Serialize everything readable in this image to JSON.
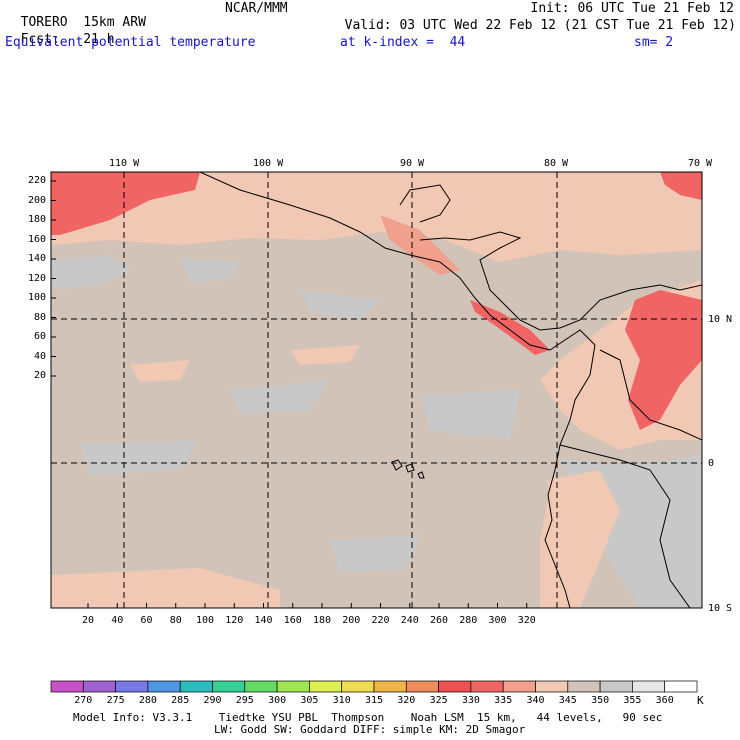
{
  "header": {
    "model_name": "TORERO",
    "resolution": "15km ARW",
    "center": "NCAR/MMM",
    "init": "Init: 06 UTC Tue 21 Feb 12",
    "fcst_label": "Fcst:",
    "fcst_hours": "21 h",
    "valid": "Valid: 03 UTC Wed 22 Feb 12 (21 CST Tue 21 Feb 12)",
    "field": "Equivalent potential temperature",
    "level": "at k-index =  44",
    "smoothing": "sm= 2"
  },
  "map": {
    "lon_labels": [
      "110 W",
      "100 W",
      "90 W",
      "80 W",
      "70 W"
    ],
    "lat_labels": [
      "10 N",
      "0",
      "10 S"
    ],
    "y_ticks": [
      "220",
      "200",
      "180",
      "160",
      "140",
      "120",
      "100",
      "80",
      "60",
      "40",
      "20"
    ],
    "x_ticks": [
      "20",
      "40",
      "60",
      "80",
      "100",
      "120",
      "140",
      "160",
      "180",
      "200",
      "220",
      "240",
      "260",
      "280",
      "300",
      "320"
    ]
  },
  "colorbar": {
    "unit": "K",
    "labels": [
      "270",
      "275",
      "280",
      "285",
      "290",
      "295",
      "300",
      "305",
      "310",
      "315",
      "320",
      "325",
      "330",
      "335",
      "340",
      "345",
      "350",
      "355",
      "360"
    ],
    "colors": [
      "#c850c8",
      "#a064d2",
      "#7878e6",
      "#5096e6",
      "#28bebe",
      "#32d296",
      "#64dc64",
      "#a0e650",
      "#dcf050",
      "#f0dc50",
      "#f0b446",
      "#f08c5a",
      "#f05050",
      "#f06464",
      "#f0a08c",
      "#f0c8b4",
      "#d2c3b9",
      "#c8c8c8",
      "#e6e6e6",
      "#ffffff"
    ],
    "ocean_color": "#d2c3b9",
    "cool_color": "#c8c8c8",
    "warm_color": "#f0c8b4",
    "hot_color": "#f0a08c",
    "hotter_color": "#f06464",
    "land_line_color": "#000000"
  },
  "footer": {
    "line1": "Model Info: V3.3.1    Tiedtke YSU PBL  Thompson    Noah LSM  15 km,   44 levels,   90 sec",
    "line2": "LW: Godd SW: Goddard DIFF: simple KM: 2D Smagor"
  }
}
